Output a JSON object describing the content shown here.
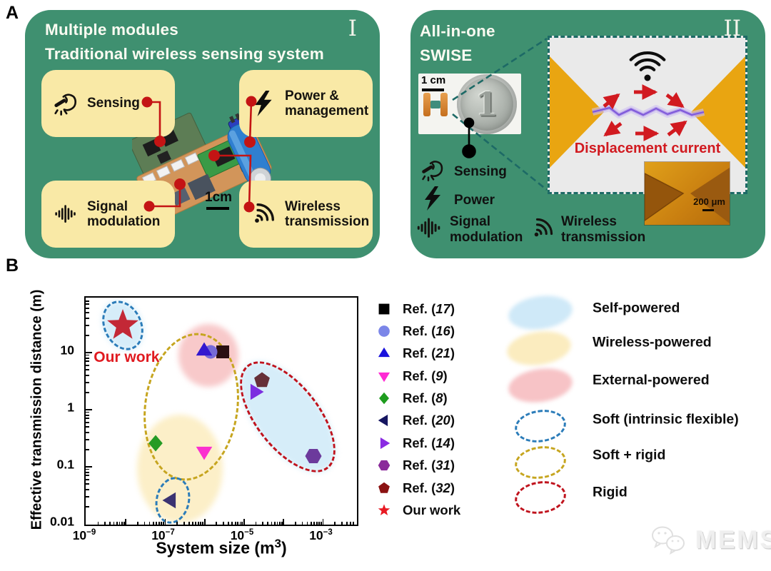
{
  "figure": {
    "panel_a_label": "A",
    "panel_b_label": "B"
  },
  "panel1": {
    "numeral": "I",
    "title_line1": "Multiple modules",
    "title_line2": "Traditional wireless sensing system",
    "scale_bar": "1cm",
    "modules": [
      {
        "icon": "hand-tap-icon",
        "label": "Sensing"
      },
      {
        "icon": "lightning-icon",
        "label": "Power &\nmanagement"
      },
      {
        "icon": "signal-bars-icon",
        "label": "Signal\nmodulation"
      },
      {
        "icon": "wifi-icon",
        "label": "Wireless\ntransmission"
      }
    ]
  },
  "panel2": {
    "numeral": "II",
    "title_line1": "All-in-one",
    "title_line2": "SWISE",
    "photo_scale_bar": "1 cm",
    "coin_numeral": "1",
    "features": [
      {
        "icon": "hand-tap-icon",
        "label": "Sensing"
      },
      {
        "icon": "lightning-icon",
        "label": "Power"
      },
      {
        "icon": "signal-bars-icon",
        "label": "Signal\nmodulation"
      },
      {
        "icon": "wifi-icon",
        "label": "Wireless\ntransmission"
      }
    ],
    "inset": {
      "annotation": "Displacement current",
      "scale_bar": "200 μm"
    }
  },
  "chart_data": {
    "type": "scatter",
    "xlabel": "System size (m³)",
    "xlabel_parts": {
      "text": "System size (m",
      "sup": "3",
      "end": ")"
    },
    "ylabel": "Effective transmission distance (m)",
    "x_scale": "log",
    "y_scale": "log",
    "grid": false,
    "x_range_exp": [
      -9,
      -2.12
    ],
    "y_range_exp": [
      -2.025,
      1.95
    ],
    "x_tick_exponents": [
      -9,
      -7,
      -5,
      -3
    ],
    "y_ticks": [
      {
        "label": "10",
        "exp": 1
      },
      {
        "label": "1",
        "exp": 0
      },
      {
        "label": "0.1",
        "exp": -1
      },
      {
        "label": "0.01",
        "exp": -2
      }
    ],
    "points": [
      {
        "name": "Ref. (17)",
        "shape": "square",
        "color": "#2a0f12",
        "x": 3e-06,
        "y": 10
      },
      {
        "name": "Ref. (16)",
        "shape": "circle",
        "color": "#766bd8",
        "x": 1.5e-06,
        "y": 10
      },
      {
        "name": "Ref. (21)",
        "shape": "triangle-up",
        "color": "#3318cf",
        "x": 1e-06,
        "y": 10.5
      },
      {
        "name": "Ref. (9)",
        "shape": "triangle-down",
        "color": "#fb30cf",
        "x": 1e-06,
        "y": 0.18
      },
      {
        "name": "Ref. (8)",
        "shape": "diamond",
        "color": "#259b24",
        "x": 6e-08,
        "y": 0.25
      },
      {
        "name": "Ref. (20)",
        "shape": "triangle-left",
        "color": "#3b3372",
        "x": 1.4e-07,
        "y": 0.025
      },
      {
        "name": "Ref. (14)",
        "shape": "triangle-right",
        "color": "#7c2fe0",
        "x": 2e-05,
        "y": 2
      },
      {
        "name": "Ref. (31)",
        "shape": "hexagon",
        "color": "#6c3a9c",
        "x": 0.0006,
        "y": 0.15
      },
      {
        "name": "Ref. (32)",
        "shape": "pentagon",
        "color": "#663038",
        "x": 3e-05,
        "y": 3.2
      },
      {
        "name": "Our work",
        "shape": "star",
        "color": "#c32836",
        "x": 8.7e-09,
        "y": 29
      }
    ],
    "annotation": {
      "text": "Our work",
      "x": 1.6e-09,
      "y": 8,
      "color": "#e01a20"
    },
    "group_ellipses": [
      {
        "name": "wireless-powered-region",
        "x": 2.4e-07,
        "y": 0.09,
        "rx": 60,
        "ry": 76,
        "rot": 0,
        "fill": "#fcefc8",
        "stroke": null
      },
      {
        "name": "external-powered-region",
        "x": 1.3e-06,
        "y": 8.7,
        "rx": 42,
        "ry": 44,
        "rot": 0,
        "fill": "#f8c9ca",
        "stroke": null
      },
      {
        "name": "self-powered-soft-region",
        "x": 8.7e-09,
        "y": 29,
        "rx": 27,
        "ry": 36,
        "rot": -25,
        "fill": "#d6edf9",
        "stroke": "#2b7cb9"
      },
      {
        "name": "rigid-self-powered-region",
        "x": 0.00013,
        "y": 0.73,
        "rx": 45,
        "ry": 92,
        "rot": -38,
        "fill": "#d6edf9",
        "stroke": "#c0131d"
      },
      {
        "name": "soft-plus-rigid-region",
        "x": 4.8e-07,
        "y": 1.09,
        "rx": 66,
        "ry": 104,
        "rot": 8,
        "fill": null,
        "stroke": "#c6a51f"
      },
      {
        "name": "soft-small-region",
        "x": 1.6e-07,
        "y": 0.025,
        "rx": 24,
        "ry": 33,
        "rot": 12,
        "fill": null,
        "stroke": "#2b7cb9"
      }
    ]
  },
  "legend_refs": [
    {
      "label": "Ref. (17)",
      "shape": "square",
      "color": "#000000"
    },
    {
      "label": "Ref. (16)",
      "shape": "circle",
      "color": "#7b86e8"
    },
    {
      "label": "Ref. (21)",
      "shape": "triangle-up",
      "color": "#1a12dd"
    },
    {
      "label": "Ref. (9)",
      "shape": "triangle-down",
      "color": "#ff2ad4"
    },
    {
      "label": "Ref. (8)",
      "shape": "diamond",
      "color": "#1e9c1e"
    },
    {
      "label": "Ref. (20)",
      "shape": "triangle-left",
      "color": "#151560"
    },
    {
      "label": "Ref. (14)",
      "shape": "triangle-right",
      "color": "#8a2be2"
    },
    {
      "label": "Ref. (31)",
      "shape": "hexagon",
      "color": "#8a2b9a"
    },
    {
      "label": "Ref. (32)",
      "shape": "pentagon",
      "color": "#8b1212"
    },
    {
      "label": "Our work",
      "shape": "star",
      "color": "#e81922"
    }
  ],
  "legend_groups": [
    {
      "label": "Self-powered",
      "style": "fill",
      "color": "#cfe9f8"
    },
    {
      "label": "Wireless-powered",
      "style": "fill",
      "color": "#fbecbf"
    },
    {
      "label": "External-powered",
      "style": "fill",
      "color": "#f7c3c6"
    },
    {
      "label": "Soft (intrinsic flexible)",
      "style": "dashed",
      "color": "#2b7cb9"
    },
    {
      "label": "Soft + rigid",
      "style": "dashed",
      "color": "#c6a51f"
    },
    {
      "label": "Rigid",
      "style": "dashed",
      "color": "#c0131d"
    }
  ],
  "watermark": {
    "text": "MEMS"
  }
}
